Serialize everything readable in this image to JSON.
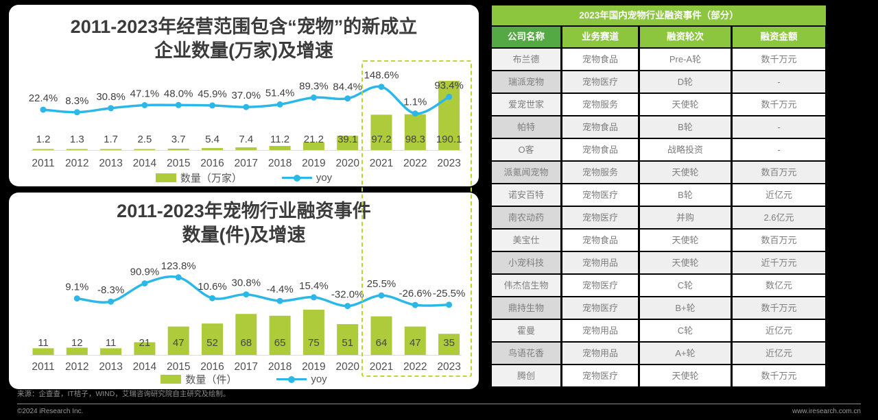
{
  "colors": {
    "bar": "#ADCB3B",
    "line": "#2BB7E8",
    "dash": "#BED62F",
    "table_green": "#8CC63F",
    "table_dark_green": "#55A944",
    "background": "#000000"
  },
  "chart_data": [
    {
      "type": "bar+line",
      "title_lines": [
        "2011-2023年经营范围包含“宠物”的新成立",
        "企业数量(万家)及增速"
      ],
      "categories": [
        "2011",
        "2012",
        "2013",
        "2014",
        "2015",
        "2016",
        "2017",
        "2018",
        "2019",
        "2020",
        "2021",
        "2022",
        "2023"
      ],
      "series": [
        {
          "name": "数量（万家）",
          "type": "bar",
          "values": [
            1.2,
            1.3,
            1.7,
            2.5,
            3.7,
            5.4,
            7.4,
            11.2,
            21.2,
            39.1,
            97.2,
            98.3,
            190.1
          ],
          "labels": [
            "1.2",
            "1.3",
            "1.7",
            "2.5",
            "3.7",
            "5.4",
            "7.4",
            "11.2",
            "21.2",
            "39.1",
            "97.2",
            "98.3",
            "190.1"
          ]
        },
        {
          "name": "yoy",
          "type": "line",
          "start_category": "2011",
          "values": [
            22.4,
            8.3,
            30.8,
            47.1,
            48.0,
            45.9,
            37.0,
            51.4,
            89.3,
            84.4,
            148.6,
            1.1,
            93.4
          ],
          "labels": [
            "22.4%",
            "8.3%",
            "30.8%",
            "47.1%",
            "48.0%",
            "45.9%",
            "37.0%",
            "51.4%",
            "89.3%",
            "84.4%",
            "148.6%",
            "1.1%",
            "93.4%"
          ]
        }
      ],
      "legend": [
        "数量（万家）",
        "yoy"
      ],
      "highlight_categories": [
        "2021",
        "2022",
        "2023"
      ],
      "grid": false,
      "legend_position": "bottom"
    },
    {
      "type": "bar+line",
      "title_lines": [
        "2011-2023年宠物行业融资事件",
        "数量(件)及增速"
      ],
      "categories": [
        "2011",
        "2012",
        "2013",
        "2014",
        "2015",
        "2016",
        "2017",
        "2018",
        "2019",
        "2020",
        "2021",
        "2022",
        "2023"
      ],
      "series": [
        {
          "name": "数量（件）",
          "type": "bar",
          "values": [
            11,
            12,
            11,
            21,
            47,
            52,
            68,
            65,
            75,
            51,
            64,
            47,
            35
          ],
          "labels": [
            "11",
            "12",
            "11",
            "21",
            "47",
            "52",
            "68",
            "65",
            "75",
            "51",
            "64",
            "47",
            "35"
          ]
        },
        {
          "name": "yoy",
          "type": "line",
          "start_category": "2012",
          "values": [
            9.1,
            -8.3,
            90.9,
            123.8,
            10.6,
            30.8,
            -4.4,
            15.4,
            -32.0,
            25.5,
            -26.6,
            -25.5
          ],
          "labels": [
            "9.1%",
            "-8.3%",
            "90.9%",
            "123.8%",
            "10.6%",
            "30.8%",
            "-4.4%",
            "15.4%",
            "-32.0%",
            "25.5%",
            "-26.6%",
            "-25.5%"
          ]
        }
      ],
      "legend": [
        "数量（件）",
        "yoy"
      ],
      "highlight_categories": [
        "2021",
        "2022",
        "2023"
      ],
      "grid": false,
      "legend_position": "bottom"
    }
  ],
  "table": {
    "title": "2023年国内宠物行业融资事件（部分）",
    "columns": [
      "公司名称",
      "业务赛道",
      "融资轮次",
      "融资金额"
    ],
    "rows": [
      [
        "布兰德",
        "宠物食品",
        "Pre-A轮",
        "数千万元"
      ],
      [
        "瑞派宠物",
        "宠物医疗",
        "D轮",
        "-"
      ],
      [
        "爱宠世家",
        "宠物服务",
        "天使轮",
        "数千万元"
      ],
      [
        "帕特",
        "宠物食品",
        "B轮",
        "-"
      ],
      [
        "O客",
        "宠物食品",
        "战略投资",
        "-"
      ],
      [
        "派氪闻宠物",
        "宠物服务",
        "天使轮",
        "数百万元"
      ],
      [
        "诺安百特",
        "宠物医疗",
        "B轮",
        "近亿元"
      ],
      [
        "南农动药",
        "宠物医疗",
        "并购",
        "2.6亿元"
      ],
      [
        "美宝仕",
        "宠物食品",
        "天使轮",
        "数百万元"
      ],
      [
        "小宠科技",
        "宠物用品",
        "天使轮",
        "近千万元"
      ],
      [
        "伟杰信生物",
        "宠物医疗",
        "C轮",
        "数亿元"
      ],
      [
        "鼎持生物",
        "宠物医疗",
        "B+轮",
        "数千万元"
      ],
      [
        "霍曼",
        "宠物用品",
        "C轮",
        "近亿元"
      ],
      [
        "鸟语花香",
        "宠物用品",
        "A+轮",
        "近亿元"
      ],
      [
        "腾创",
        "宠物医疗",
        "天使轮",
        "数千万元"
      ]
    ]
  },
  "footer": {
    "source": "来源：企查查，IT桔子，WIND，艾瑞咨询研究院自主研究及绘制。",
    "copyright": "©2024 iResearch Inc.",
    "website": "www.iresearch.com.cn"
  }
}
